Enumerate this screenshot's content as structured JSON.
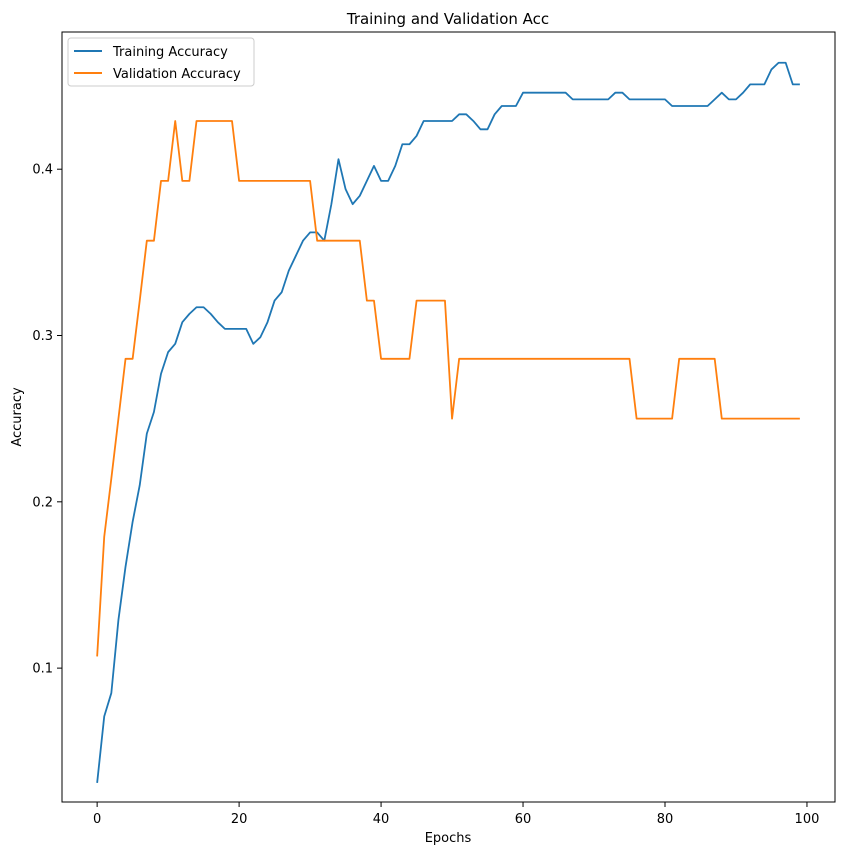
{
  "chart_data": {
    "type": "line",
    "title": "Training and Validation Acc",
    "xlabel": "Epochs",
    "ylabel": "Accuracy",
    "xlim": [
      -4.95,
      103.95
    ],
    "ylim": [
      0.0195,
      0.4825
    ],
    "xticks": [
      0,
      20,
      40,
      60,
      80,
      100
    ],
    "yticks": [
      0.1,
      0.2,
      0.3,
      0.4
    ],
    "grid": false,
    "legend_position": "top-left",
    "series": [
      {
        "name": "Training Accuracy",
        "color": "#1f77b4",
        "x": [
          0,
          1,
          2,
          3,
          4,
          5,
          6,
          7,
          8,
          9,
          10,
          11,
          12,
          13,
          14,
          15,
          16,
          17,
          18,
          19,
          20,
          21,
          22,
          23,
          24,
          25,
          26,
          27,
          28,
          29,
          30,
          31,
          32,
          33,
          34,
          35,
          36,
          37,
          38,
          39,
          40,
          41,
          42,
          43,
          44,
          45,
          46,
          47,
          48,
          49,
          50,
          51,
          52,
          53,
          54,
          55,
          56,
          57,
          58,
          59,
          60,
          61,
          62,
          63,
          64,
          65,
          66,
          67,
          68,
          69,
          70,
          71,
          72,
          73,
          74,
          75,
          76,
          77,
          78,
          79,
          80,
          81,
          82,
          83,
          84,
          85,
          86,
          87,
          88,
          89,
          90,
          91,
          92,
          93,
          94,
          95,
          96,
          97,
          98,
          99
        ],
        "values": [
          0.031,
          0.071,
          0.085,
          0.129,
          0.161,
          0.188,
          0.21,
          0.241,
          0.254,
          0.277,
          0.29,
          0.295,
          0.308,
          0.313,
          0.317,
          0.317,
          0.313,
          0.308,
          0.304,
          0.304,
          0.304,
          0.304,
          0.295,
          0.299,
          0.308,
          0.321,
          0.326,
          0.339,
          0.348,
          0.357,
          0.362,
          0.362,
          0.357,
          0.379,
          0.406,
          0.388,
          0.379,
          0.384,
          0.393,
          0.402,
          0.393,
          0.393,
          0.402,
          0.415,
          0.415,
          0.42,
          0.429,
          0.429,
          0.429,
          0.429,
          0.429,
          0.433,
          0.433,
          0.429,
          0.424,
          0.424,
          0.433,
          0.438,
          0.438,
          0.438,
          0.446,
          0.446,
          0.446,
          0.446,
          0.446,
          0.446,
          0.446,
          0.442,
          0.442,
          0.442,
          0.442,
          0.442,
          0.442,
          0.446,
          0.446,
          0.442,
          0.442,
          0.442,
          0.442,
          0.442,
          0.442,
          0.438,
          0.438,
          0.438,
          0.438,
          0.438,
          0.438,
          0.442,
          0.446,
          0.442,
          0.442,
          0.446,
          0.451,
          0.451,
          0.451,
          0.46,
          0.464,
          0.464,
          0.451,
          0.451
        ]
      },
      {
        "name": "Validation Accuracy",
        "color": "#ff7f0e",
        "x": [
          0,
          1,
          2,
          3,
          4,
          5,
          6,
          7,
          8,
          9,
          10,
          11,
          12,
          13,
          14,
          15,
          16,
          17,
          18,
          19,
          20,
          21,
          22,
          23,
          24,
          25,
          26,
          27,
          28,
          29,
          30,
          31,
          32,
          33,
          34,
          35,
          36,
          37,
          38,
          39,
          40,
          41,
          42,
          43,
          44,
          45,
          46,
          47,
          48,
          49,
          50,
          51,
          52,
          53,
          54,
          55,
          56,
          57,
          58,
          59,
          60,
          61,
          62,
          63,
          64,
          65,
          66,
          67,
          68,
          69,
          70,
          71,
          72,
          73,
          74,
          75,
          76,
          77,
          78,
          79,
          80,
          81,
          82,
          83,
          84,
          85,
          86,
          87,
          88,
          89,
          90,
          91,
          92,
          93,
          94,
          95,
          96,
          97,
          98,
          99
        ],
        "values": [
          0.107,
          0.179,
          0.214,
          0.25,
          0.286,
          0.286,
          0.321,
          0.357,
          0.357,
          0.393,
          0.393,
          0.429,
          0.393,
          0.393,
          0.429,
          0.429,
          0.429,
          0.429,
          0.429,
          0.429,
          0.393,
          0.393,
          0.393,
          0.393,
          0.393,
          0.393,
          0.393,
          0.393,
          0.393,
          0.393,
          0.393,
          0.357,
          0.357,
          0.357,
          0.357,
          0.357,
          0.357,
          0.357,
          0.321,
          0.321,
          0.286,
          0.286,
          0.286,
          0.286,
          0.286,
          0.321,
          0.321,
          0.321,
          0.321,
          0.321,
          0.25,
          0.286,
          0.286,
          0.286,
          0.286,
          0.286,
          0.286,
          0.286,
          0.286,
          0.286,
          0.286,
          0.286,
          0.286,
          0.286,
          0.286,
          0.286,
          0.286,
          0.286,
          0.286,
          0.286,
          0.286,
          0.286,
          0.286,
          0.286,
          0.286,
          0.286,
          0.25,
          0.25,
          0.25,
          0.25,
          0.25,
          0.25,
          0.286,
          0.286,
          0.286,
          0.286,
          0.286,
          0.286,
          0.25,
          0.25,
          0.25,
          0.25,
          0.25,
          0.25,
          0.25,
          0.25,
          0.25,
          0.25,
          0.25,
          0.25
        ]
      }
    ]
  }
}
